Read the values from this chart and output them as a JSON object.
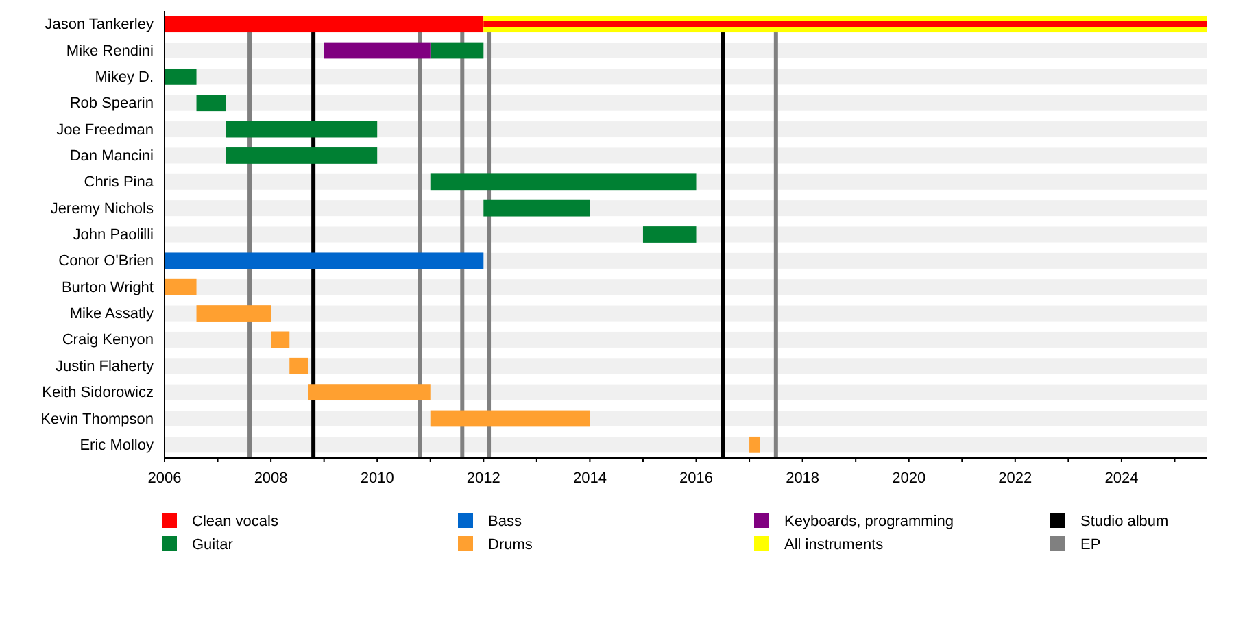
{
  "chart_data": {
    "type": "bar",
    "orientation": "horizontal",
    "categories": [
      "Jason Tankerley",
      "Mike Rendini",
      "Mikey D.",
      "Rob Spearin",
      "Joe Freedman",
      "Dan Mancini",
      "Chris Pina",
      "Jeremy Nichols",
      "John Paolilli",
      "Conor O'Brien",
      "Burton Wright",
      "Mike Assatly",
      "Craig Kenyon",
      "Justin Flaherty",
      "Keith Sidorowicz",
      "Kevin Thompson",
      "Eric Molloy"
    ],
    "xlim": [
      2006,
      2025.6
    ],
    "xticks": [
      2006,
      {
        "value": 2007,
        "label": null
      },
      2008,
      {
        "value": 2009,
        "label": null
      },
      2010,
      {
        "value": 2011,
        "label": null
      },
      2012,
      {
        "value": 2013,
        "label": null
      },
      2014,
      {
        "value": 2015,
        "label": null
      },
      2016,
      {
        "value": 2017,
        "label": null
      },
      2018,
      {
        "value": 2019,
        "label": null
      },
      2020,
      {
        "value": 2021,
        "label": null
      },
      2022,
      {
        "value": 2023,
        "label": null
      },
      2024,
      {
        "value": 2025,
        "label": null
      }
    ],
    "series": [
      {
        "name": "Clean vocals",
        "color": "#ff0000",
        "base": [
          2006,
          null,
          null,
          null,
          null,
          null,
          null,
          null,
          null,
          null,
          null,
          null,
          null,
          null,
          null,
          null,
          null
        ],
        "values": [
          6,
          null,
          null,
          null,
          null,
          null,
          null,
          null,
          null,
          null,
          null,
          null,
          null,
          null,
          null,
          null,
          null
        ]
      },
      {
        "name": "Guitar",
        "color": "#008033",
        "base": [
          null,
          2011,
          2006,
          2006.6,
          2007.15,
          2007.15,
          2011,
          2012,
          2015,
          null,
          null,
          null,
          null,
          null,
          null,
          null,
          null
        ],
        "values": [
          null,
          1,
          0.6,
          0.55,
          2.85,
          2.85,
          5,
          2,
          1,
          null,
          null,
          null,
          null,
          null,
          null,
          null,
          null
        ]
      },
      {
        "name": "Bass",
        "color": "#0066cc",
        "base": [
          null,
          null,
          null,
          null,
          null,
          null,
          null,
          null,
          null,
          2006,
          null,
          null,
          null,
          null,
          null,
          null,
          null
        ],
        "values": [
          null,
          null,
          null,
          null,
          null,
          null,
          null,
          null,
          null,
          6,
          null,
          null,
          null,
          null,
          null,
          null,
          null
        ]
      },
      {
        "name": "Drums",
        "color": "#ffa030",
        "base": [
          null,
          null,
          null,
          null,
          null,
          null,
          null,
          null,
          null,
          null,
          2006,
          2006.6,
          2008,
          2008.35,
          2008.7,
          2011,
          2017
        ],
        "values": [
          null,
          null,
          null,
          null,
          null,
          null,
          null,
          null,
          null,
          null,
          0.6,
          1.4,
          0.35,
          0.35,
          2.3,
          3,
          0.2
        ]
      },
      {
        "name": "Keyboards, programming",
        "color": "#800080",
        "base": [
          null,
          2009,
          null,
          null,
          null,
          null,
          null,
          null,
          null,
          null,
          null,
          null,
          null,
          null,
          null,
          null,
          null
        ],
        "values": [
          null,
          2,
          null,
          null,
          null,
          null,
          null,
          null,
          null,
          null,
          null,
          null,
          null,
          null,
          null,
          null,
          null
        ]
      },
      {
        "name": "All instruments",
        "color": "#ffff00",
        "base": [
          2012,
          null,
          null,
          null,
          null,
          null,
          null,
          null,
          null,
          null,
          null,
          null,
          null,
          null,
          null,
          null,
          null
        ],
        "values": [
          13.6,
          null,
          null,
          null,
          null,
          null,
          null,
          null,
          null,
          null,
          null,
          null,
          null,
          null,
          null,
          null,
          null
        ]
      },
      {
        "color": "#ff0000",
        "base": [
          2012,
          null,
          null,
          null,
          null,
          null,
          null,
          null,
          null,
          null,
          null,
          null,
          null,
          null,
          null,
          null,
          null
        ],
        "values": [
          13.6,
          null,
          null,
          null,
          null,
          null,
          null,
          null,
          null,
          null,
          null,
          null,
          null,
          null,
          null,
          null,
          null
        ]
      }
    ],
    "ref_lines": [
      {
        "axis": "x",
        "value": 2008.8,
        "label": "Studio album",
        "color": "#000000"
      },
      {
        "axis": "x",
        "value": 2016.5,
        "color": "#000000"
      },
      {
        "axis": "x",
        "value": 2007.6,
        "label": "EP",
        "color": "#808080"
      },
      {
        "axis": "x",
        "value": 2010.8,
        "color": "#808080"
      },
      {
        "axis": "x",
        "value": 2011.6,
        "color": "#808080"
      },
      {
        "axis": "x",
        "value": 2012.1,
        "color": "#808080"
      },
      {
        "axis": "x",
        "value": 2017.5,
        "color": "#808080"
      }
    ],
    "legend": "bottom"
  }
}
